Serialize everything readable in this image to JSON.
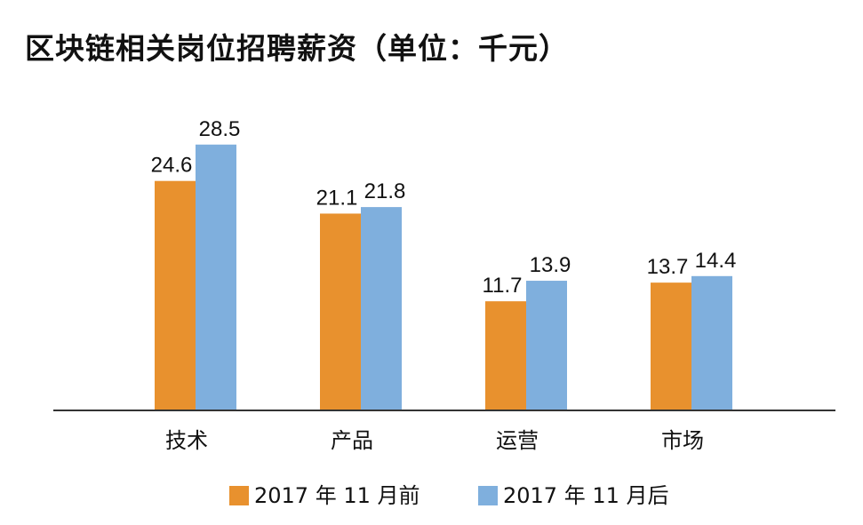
{
  "chart_data": {
    "type": "bar",
    "title": "区块链相关岗位招聘薪资（单位：千元）",
    "xlabel": "",
    "ylabel": "",
    "categories": [
      "技术",
      "产品",
      "运营",
      "市场"
    ],
    "series": [
      {
        "name": "2017 年 11 月前",
        "values": [
          24.6,
          21.1,
          11.7,
          13.7
        ],
        "color": "#E8912E"
      },
      {
        "name": "2017 年 11 月后",
        "values": [
          28.5,
          21.8,
          13.9,
          14.4
        ],
        "color": "#7FAFDD"
      }
    ],
    "ylim": [
      0,
      30
    ],
    "grid": false,
    "legend_position": "bottom"
  }
}
